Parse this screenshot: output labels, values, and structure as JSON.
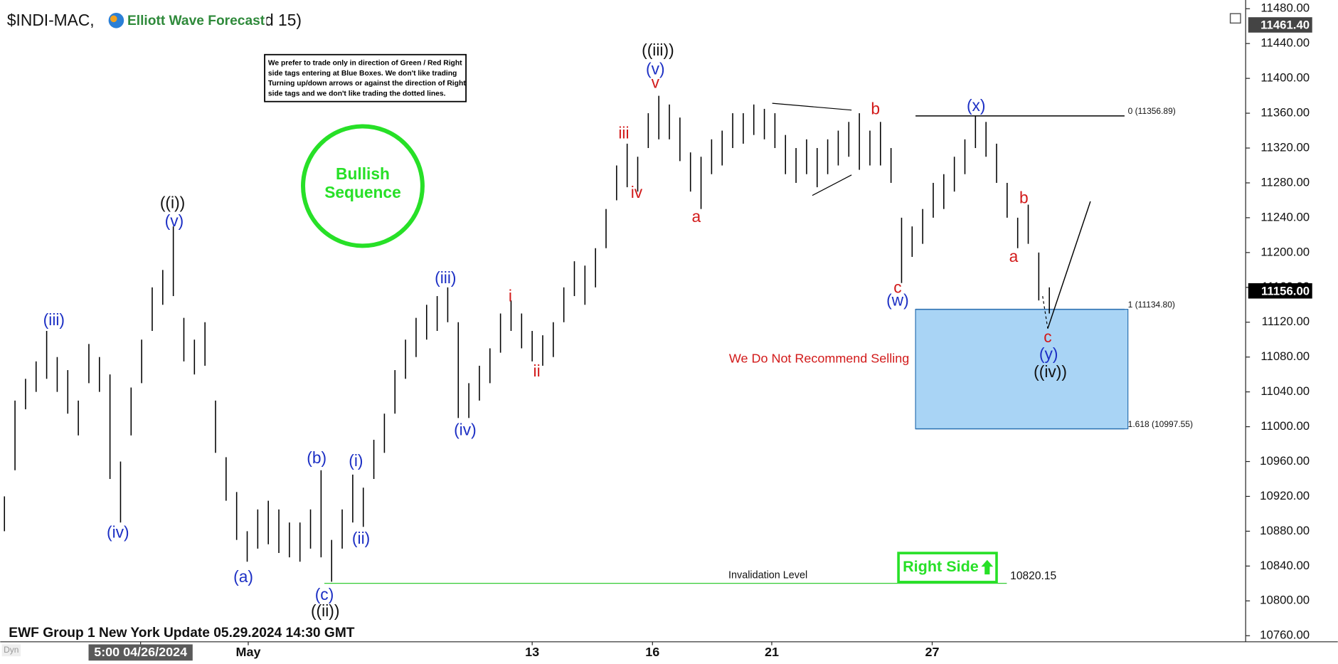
{
  "chart_data": {
    "type": "ohlc",
    "title": "$INDI-MAC,",
    "logo_text": "Elliott Wave Forecast",
    "title_suffix": "d 15)",
    "footer": "EWF Group 1 New York Update 05.29.2024 14:30 GMT",
    "corner_text": "Dyn",
    "disclaimer": [
      "We prefer to trade only in direction of Green / Red Right",
      "side tags entering at Blue Boxes. We don't like trading",
      "Turning up/down arrows or against the direction of Right",
      "side tags and we don't like trading the dotted lines."
    ],
    "badge": [
      "Bullish",
      "Sequence"
    ],
    "warning": "We Do Not Recommend Selling",
    "right_side": "Right Side",
    "invalidation": {
      "value": 10820.15,
      "label": "10820.15",
      "text": "Invalidation Level"
    },
    "fib_levels": [
      {
        "value": 11356.89,
        "label": "0 (11356.89)"
      },
      {
        "value": 11134.8,
        "label": "1 (11134.80)"
      },
      {
        "value": 10997.55,
        "label": "1.618 (10997.55)"
      }
    ],
    "price_markers": [
      {
        "value": 11461.4,
        "label": "11461.40"
      },
      {
        "value": 11156,
        "label": "11156.00"
      }
    ],
    "wave_labels": [
      "((i))",
      "(v)",
      "(iii)",
      "(iv)",
      "(a)",
      "(b)",
      "(c)",
      "((ii))",
      "(i)",
      "(ii)",
      "(iii)",
      "(iv)",
      "i",
      "ii",
      "iii",
      "iv",
      "v",
      "(v)",
      "((iii))",
      "a",
      "b",
      "c",
      "(w)",
      "(x)",
      "b",
      "a",
      "c",
      "(y)",
      "((iv))"
    ],
    "high": [
      10920,
      11030,
      11055,
      11075,
      11110,
      11080,
      11065,
      11030,
      11095,
      11080,
      11060,
      10960,
      11045,
      11100,
      11160,
      11180,
      11230,
      11125,
      11100,
      11120,
      11030,
      10965,
      10925,
      10880,
      10905,
      10915,
      10905,
      10890,
      10890,
      10905,
      10950,
      10870,
      10905,
      10945,
      10930,
      10985,
      11015,
      11065,
      11100,
      11125,
      11140,
      11150,
      11160,
      11120,
      11050,
      11070,
      11090,
      11130,
      11145,
      11130,
      11110,
      11105,
      11120,
      11160,
      11190,
      11185,
      11205,
      11250,
      11300,
      11325,
      11310,
      11360,
      11380,
      11370,
      11355,
      11315,
      11310,
      11330,
      11340,
      11360,
      11360,
      11370,
      11365,
      11360,
      11335,
      11320,
      11330,
      11320,
      11330,
      11340,
      11350,
      11360,
      11340,
      11350,
      11320,
      11240,
      11230,
      11250,
      11280,
      11290,
      11310,
      11330,
      11357,
      11350,
      11325,
      11280,
      11240,
      11255,
      11200,
      11160
    ],
    "low": [
      10880,
      10950,
      11020,
      11040,
      11055,
      11040,
      11015,
      10990,
      11050,
      11040,
      10940,
      10890,
      10990,
      11050,
      11110,
      11140,
      11150,
      11075,
      11060,
      11070,
      10970,
      10915,
      10870,
      10845,
      10860,
      10865,
      10855,
      10850,
      10845,
      10860,
      10850,
      10822,
      10860,
      10890,
      10885,
      10940,
      10970,
      11015,
      11055,
      11080,
      11100,
      11110,
      11120,
      11010,
      11010,
      11030,
      11050,
      11085,
      11110,
      11090,
      11075,
      11070,
      11080,
      11120,
      11150,
      11140,
      11160,
      11205,
      11260,
      11275,
      11270,
      11320,
      11330,
      11330,
      11305,
      11270,
      11250,
      11290,
      11300,
      11320,
      11325,
      11335,
      11330,
      11320,
      11290,
      11280,
      11290,
      11275,
      11290,
      11300,
      11310,
      11295,
      11300,
      11300,
      11280,
      11165,
      11195,
      11210,
      11240,
      11250,
      11270,
      11290,
      11320,
      11310,
      11280,
      11240,
      11205,
      11210,
      11145,
      11130
    ],
    "xlim": [
      -0.4,
      117.6
    ],
    "xticks": [
      {
        "value": 12.9,
        "label": "5:00 04/26/2024"
      },
      {
        "value": 23.1,
        "label": "May"
      },
      {
        "value": 50,
        "label": "13"
      },
      {
        "value": 61.4,
        "label": "16"
      },
      {
        "value": 72.7,
        "label": "21"
      },
      {
        "value": 87.9,
        "label": "27"
      }
    ],
    "ylim": [
      10753,
      11490
    ],
    "yticks": [
      {
        "value": 10760,
        "label": "10760.00"
      },
      {
        "value": 10800,
        "label": "10800.00"
      },
      {
        "value": 10840,
        "label": "10840.00"
      },
      {
        "value": 10880,
        "label": "10880.00"
      },
      {
        "value": 10920,
        "label": "10920.00"
      },
      {
        "value": 10960,
        "label": "10960.00"
      },
      {
        "value": 11000,
        "label": "11000.00"
      },
      {
        "value": 11040,
        "label": "11040.00"
      },
      {
        "value": 11080,
        "label": "11080.00"
      },
      {
        "value": 11120,
        "label": "11120.00"
      },
      {
        "value": 11160,
        "label": "11160.00"
      },
      {
        "value": 11200,
        "label": "11200.00"
      },
      {
        "value": 11240,
        "label": "11240.00"
      },
      {
        "value": 11280,
        "label": "11280.00"
      },
      {
        "value": 11320,
        "label": "11320.00"
      },
      {
        "value": 11360,
        "label": "11360.00"
      },
      {
        "value": 11400,
        "label": "11400.00"
      },
      {
        "value": 11440,
        "label": "11440.00"
      },
      {
        "value": 11480,
        "label": "11480.00"
      }
    ],
    "bar_color": "#000000"
  }
}
